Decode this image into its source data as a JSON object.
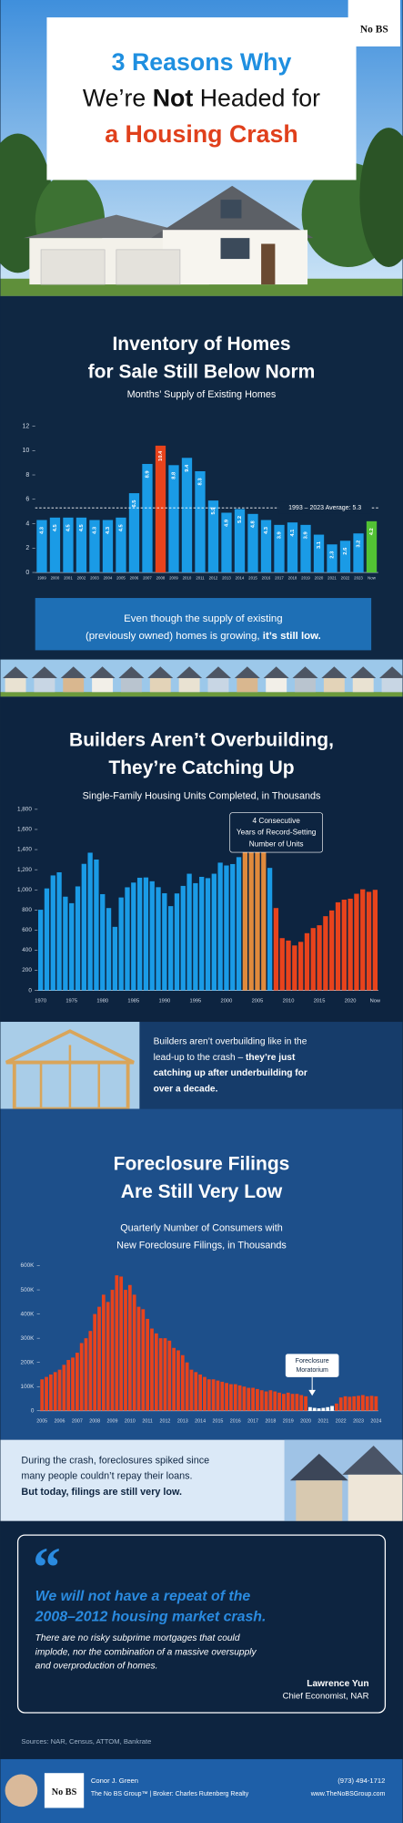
{
  "header": {
    "logo": "No BS",
    "title_lines": [
      [
        {
          "text": "3 Reasons Why",
          "bold": true,
          "color": "#1f8fe0"
        }
      ],
      [
        {
          "text": "We’re ",
          "bold": false,
          "color": "#111111"
        },
        {
          "text": "Not",
          "bold": true,
          "color": "#111111"
        },
        {
          "text": " Headed for",
          "bold": false,
          "color": "#111111"
        }
      ],
      [
        {
          "text": "a Housing Crash",
          "bold": true,
          "color": "#e0401c"
        }
      ]
    ]
  },
  "chart_data": [
    {
      "type": "bar",
      "title_lines": [
        "Inventory of Homes",
        "for Sale Still Below Norm"
      ],
      "subtitle_lines": [
        "Months’ Supply of Existing Homes"
      ],
      "categories": [
        "1999",
        "2000",
        "2001",
        "2002",
        "2003",
        "2004",
        "2005",
        "2006",
        "2007",
        "2008",
        "2009",
        "2010",
        "2011",
        "2012",
        "2013",
        "2014",
        "2015",
        "2016",
        "2017",
        "2018",
        "2019",
        "2020",
        "2021",
        "2022",
        "2023",
        "Now"
      ],
      "values": [
        4.3,
        4.5,
        4.5,
        4.5,
        4.3,
        4.3,
        4.5,
        6.5,
        8.9,
        10.4,
        8.8,
        9.4,
        8.3,
        5.9,
        4.9,
        5.2,
        4.8,
        4.3,
        3.9,
        4.1,
        3.9,
        3.1,
        2.3,
        2.6,
        3.2,
        4.2
      ],
      "bar_colors": [
        "#1a9be6",
        "#1a9be6",
        "#1a9be6",
        "#1a9be6",
        "#1a9be6",
        "#1a9be6",
        "#1a9be6",
        "#1a9be6",
        "#1a9be6",
        "#e8431c",
        "#1a9be6",
        "#1a9be6",
        "#1a9be6",
        "#1a9be6",
        "#1a9be6",
        "#1a9be6",
        "#1a9be6",
        "#1a9be6",
        "#1a9be6",
        "#1a9be6",
        "#1a9be6",
        "#1a9be6",
        "#1a9be6",
        "#1a9be6",
        "#1a9be6",
        "#52c234"
      ],
      "show_value_labels": true,
      "ylim": [
        0,
        12
      ],
      "yticks": [
        0,
        2,
        4,
        6,
        8,
        10,
        12
      ],
      "average": 5.3,
      "average_label": "1993 – 2023 Average: 5.3",
      "callout_lines": [
        [
          {
            "text": "Even though the supply of existing",
            "bold": false
          }
        ],
        [
          {
            "text": "(previously owned) homes is growing, ",
            "bold": false
          },
          {
            "text": "it’s still low.",
            "bold": true
          }
        ]
      ]
    },
    {
      "type": "bar",
      "title_lines": [
        "Builders Aren’t Overbuilding,",
        "They’re Catching Up"
      ],
      "subtitle_lines": [
        "Single-Family Housing Units Completed, in Thousands"
      ],
      "categories": [
        "1970",
        null,
        null,
        null,
        null,
        "1975",
        null,
        null,
        null,
        null,
        "1980",
        null,
        null,
        null,
        null,
        "1985",
        null,
        null,
        null,
        null,
        "1990",
        null,
        null,
        null,
        null,
        "1995",
        null,
        null,
        null,
        null,
        "2000",
        null,
        null,
        null,
        null,
        "2005",
        null,
        null,
        null,
        null,
        "2010",
        null,
        null,
        null,
        null,
        "2015",
        null,
        null,
        null,
        null,
        "2020",
        null,
        null,
        null,
        "Now"
      ],
      "values": [
        802,
        1014,
        1143,
        1174,
        932,
        867,
        1034,
        1258,
        1369,
        1301,
        957,
        819,
        632,
        924,
        1025,
        1072,
        1120,
        1123,
        1085,
        1026,
        966,
        838,
        964,
        1039,
        1160,
        1066,
        1129,
        1116,
        1160,
        1270,
        1242,
        1256,
        1325,
        1386,
        1531,
        1636,
        1655,
        1218,
        819,
        520,
        496,
        447,
        483,
        569,
        620,
        648,
        738,
        795,
        876,
        902,
        912,
        961,
        1005,
        980,
        1000
      ],
      "bar_colors": [
        "#1a9be6",
        "#1a9be6",
        "#1a9be6",
        "#1a9be6",
        "#1a9be6",
        "#1a9be6",
        "#1a9be6",
        "#1a9be6",
        "#1a9be6",
        "#1a9be6",
        "#1a9be6",
        "#1a9be6",
        "#1a9be6",
        "#1a9be6",
        "#1a9be6",
        "#1a9be6",
        "#1a9be6",
        "#1a9be6",
        "#1a9be6",
        "#1a9be6",
        "#1a9be6",
        "#1a9be6",
        "#1a9be6",
        "#1a9be6",
        "#1a9be6",
        "#1a9be6",
        "#1a9be6",
        "#1a9be6",
        "#1a9be6",
        "#1a9be6",
        "#1a9be6",
        "#1a9be6",
        "#1a9be6",
        "#e08a3c",
        "#e08a3c",
        "#e08a3c",
        "#e08a3c",
        "#1a9be6",
        "#e8431c",
        "#e8431c",
        "#e8431c",
        "#e8431c",
        "#e8431c",
        "#e8431c",
        "#e8431c",
        "#e8431c",
        "#e8431c",
        "#e8431c",
        "#e8431c",
        "#e8431c",
        "#e8431c",
        "#e8431c",
        "#e8431c",
        "#e8431c",
        "#e8431c"
      ],
      "show_value_labels": false,
      "ylim": [
        0,
        1800
      ],
      "yticks": [
        0,
        200,
        400,
        600,
        800,
        {
          "value": 1000,
          "label": "1,000"
        },
        {
          "value": 1200,
          "label": "1,200"
        },
        {
          "value": 1400,
          "label": "1,400"
        },
        {
          "value": 1600,
          "label": "1,600"
        },
        {
          "value": 1800,
          "label": "1,800"
        }
      ],
      "annotation_lines": [
        "4 Consecutive",
        "Years of Record-Setting",
        "Number of Units"
      ],
      "callout_lines": [
        [
          {
            "text": "Builders aren’t overbuilding like in the",
            "bold": false
          }
        ],
        [
          {
            "text": "lead-up to the crash – ",
            "bold": false
          },
          {
            "text": "they’re just",
            "bold": true
          }
        ],
        [
          {
            "text": "catching up after underbuilding for",
            "bold": true
          }
        ],
        [
          {
            "text": "over a decade.",
            "bold": true
          }
        ]
      ]
    },
    {
      "type": "bar",
      "title_lines": [
        "Foreclosure Filings",
        "Are Still Very Low"
      ],
      "subtitle_lines": [
        "Quarterly Number of Consumers with",
        "New Foreclosure Filings, in Thousands"
      ],
      "categories": [
        "2005",
        null,
        null,
        null,
        "2006",
        null,
        null,
        null,
        "2007",
        null,
        null,
        null,
        "2008",
        null,
        null,
        null,
        "2009",
        null,
        null,
        null,
        "2010",
        null,
        null,
        null,
        "2011",
        null,
        null,
        null,
        "2012",
        null,
        null,
        null,
        "2013",
        null,
        null,
        null,
        "2014",
        null,
        null,
        null,
        "2015",
        null,
        null,
        null,
        "2016",
        null,
        null,
        null,
        "2017",
        null,
        null,
        null,
        "2018",
        null,
        null,
        null,
        "2019",
        null,
        null,
        null,
        "2020",
        null,
        null,
        null,
        "2021",
        null,
        null,
        null,
        "2022",
        null,
        null,
        null,
        "2023",
        null,
        null,
        null,
        "2024"
      ],
      "values": [
        130000,
        140000,
        150000,
        160000,
        170000,
        190000,
        210000,
        220000,
        240000,
        280000,
        300000,
        330000,
        400000,
        430000,
        480000,
        450000,
        500000,
        560000,
        555000,
        500000,
        520000,
        480000,
        430000,
        420000,
        380000,
        340000,
        320000,
        300000,
        300000,
        290000,
        260000,
        250000,
        230000,
        200000,
        170000,
        160000,
        150000,
        140000,
        130000,
        130000,
        125000,
        120000,
        115000,
        110000,
        110000,
        105000,
        100000,
        95000,
        95000,
        90000,
        85000,
        80000,
        85000,
        80000,
        75000,
        70000,
        75000,
        70000,
        70000,
        65000,
        60000,
        15000,
        12000,
        10000,
        12000,
        15000,
        20000,
        30000,
        55000,
        60000,
        58000,
        60000,
        62000,
        65000,
        60000,
        62000,
        60000
      ],
      "bar_colors": [
        "#e8431c",
        "#e8431c",
        "#e8431c",
        "#e8431c",
        "#e8431c",
        "#e8431c",
        "#e8431c",
        "#e8431c",
        "#e8431c",
        "#e8431c",
        "#e8431c",
        "#e8431c",
        "#e8431c",
        "#e8431c",
        "#e8431c",
        "#e8431c",
        "#e8431c",
        "#e8431c",
        "#e8431c",
        "#e8431c",
        "#e8431c",
        "#e8431c",
        "#e8431c",
        "#e8431c",
        "#e8431c",
        "#e8431c",
        "#e8431c",
        "#e8431c",
        "#e8431c",
        "#e8431c",
        "#e8431c",
        "#e8431c",
        "#e8431c",
        "#e8431c",
        "#e8431c",
        "#e8431c",
        "#e8431c",
        "#e8431c",
        "#e8431c",
        "#e8431c",
        "#e8431c",
        "#e8431c",
        "#e8431c",
        "#e8431c",
        "#e8431c",
        "#e8431c",
        "#e8431c",
        "#e8431c",
        "#e8431c",
        "#e8431c",
        "#e8431c",
        "#e8431c",
        "#e8431c",
        "#e8431c",
        "#e8431c",
        "#e8431c",
        "#e8431c",
        "#e8431c",
        "#e8431c",
        "#e8431c",
        "#e8431c",
        "#ffffff",
        "#ffffff",
        "#ffffff",
        "#ffffff",
        "#ffffff",
        "#ffffff",
        "#e8431c",
        "#e8431c",
        "#e8431c",
        "#e8431c",
        "#e8431c",
        "#e8431c",
        "#e8431c",
        "#e8431c",
        "#e8431c",
        "#e8431c"
      ],
      "show_value_labels": false,
      "ylim": [
        0,
        600000
      ],
      "yticks": [
        0,
        {
          "value": 100000,
          "label": "100K"
        },
        {
          "value": 200000,
          "label": "200K"
        },
        {
          "value": 300000,
          "label": "300K"
        },
        {
          "value": 400000,
          "label": "400K"
        },
        {
          "value": 500000,
          "label": "500K"
        },
        {
          "value": 600000,
          "label": "600K"
        }
      ],
      "annotation_lines": [
        "Foreclosure",
        "Moratorium"
      ],
      "callout_lines": [
        [
          {
            "text": "During the crash, foreclosures spiked since",
            "bold": false
          }
        ],
        [
          {
            "text": "many people couldn’t repay their loans.",
            "bold": false
          }
        ],
        [
          {
            "text": "But today, filings are still very low.",
            "bold": true
          }
        ]
      ]
    }
  ],
  "quote": {
    "mark": "“",
    "headline_lines": [
      "We will not have a repeat of the",
      "2008–2012 housing market crash."
    ],
    "body_lines": [
      "There are no risky subprime mortgages that could",
      "implode, nor the combination of a massive oversupply",
      "and overproduction of homes."
    ],
    "author": "Lawrence Yun",
    "role": "Chief Economist, NAR"
  },
  "sources": "Sources: NAR, Census, ATTOM, Bankrate",
  "footer": {
    "name": "Conor J. Green",
    "company": "The No BS Group™ | Broker: Charles Rutenberg Realty",
    "phone": "(973) 494-1712",
    "website": "www.TheNoBSGroup.com",
    "logo": "No BS"
  }
}
